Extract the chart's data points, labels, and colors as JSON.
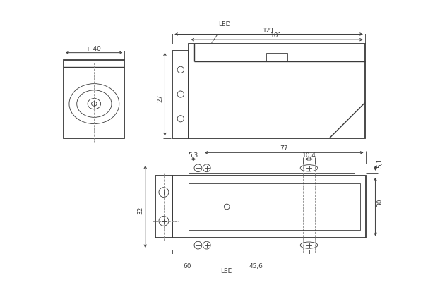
{
  "line_color": "#3a3a3a",
  "dim_color": "#3a3a3a",
  "center_color": "#888888",
  "lw": 1.0,
  "lw_thick": 1.3,
  "lw_thin": 0.6,
  "font_size": 6.5,
  "font_size_sm": 6.0
}
